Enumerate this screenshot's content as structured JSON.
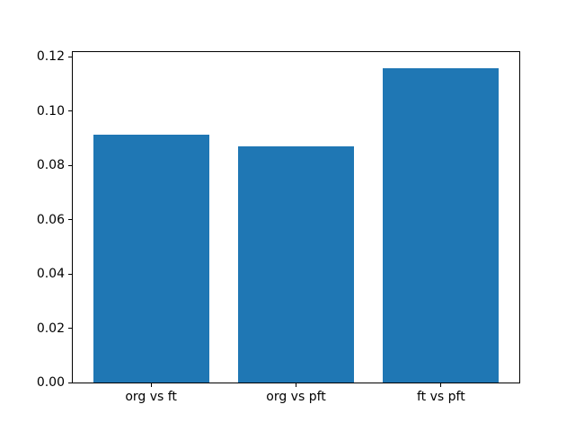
{
  "chart_data": {
    "type": "bar",
    "categories": [
      "org vs ft",
      "org vs pft",
      "ft vs pft"
    ],
    "values": [
      0.0914,
      0.0871,
      0.1159
    ],
    "title": "",
    "xlabel": "",
    "ylabel": "",
    "ylim": [
      0,
      0.1217
    ],
    "yticks": [
      "0.00",
      "0.02",
      "0.04",
      "0.06",
      "0.08",
      "0.10",
      "0.12"
    ],
    "bar_color": "#1f77b4",
    "bar_width_ratio": 0.8,
    "grid": false,
    "legend": null,
    "background_color": "#ffffff",
    "axis_color": "#000000"
  }
}
